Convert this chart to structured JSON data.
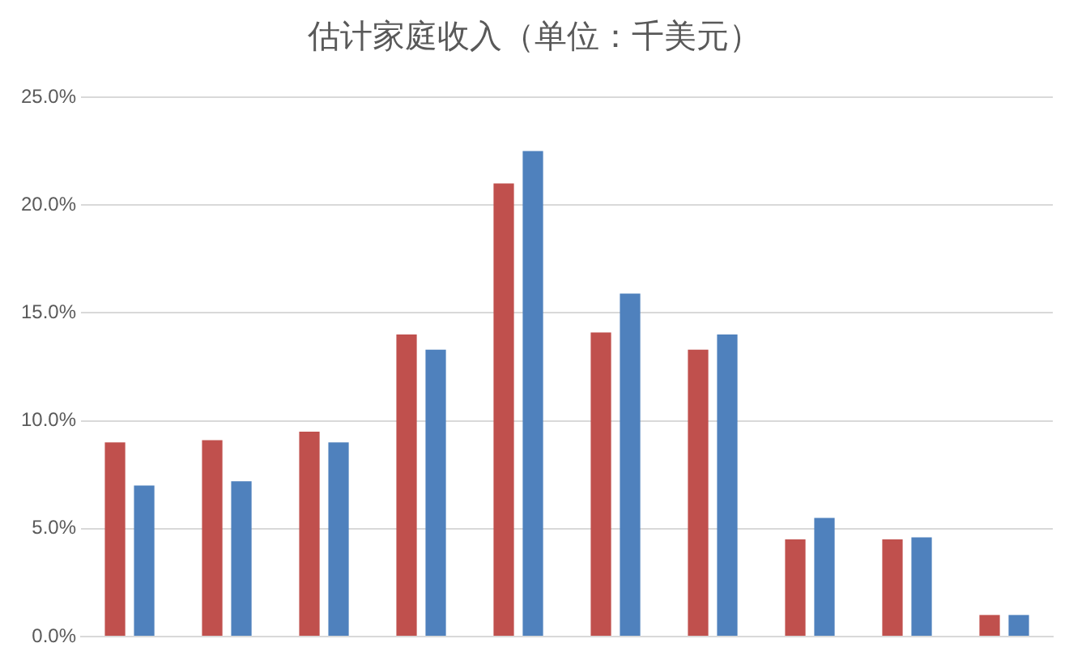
{
  "chart_data": {
    "type": "bar",
    "title": "估计家庭收入（单位：千美元）",
    "categories": [
      null,
      null,
      null,
      null,
      null,
      null,
      null,
      null,
      null,
      null
    ],
    "series": [
      {
        "color": "#c0504d",
        "values": [
          9.0,
          9.1,
          9.5,
          14.0,
          21.0,
          14.1,
          13.3,
          4.5,
          4.5,
          1.0
        ]
      },
      {
        "color": "#4f81bd",
        "values": [
          7.0,
          7.2,
          9.0,
          13.3,
          22.5,
          15.9,
          14.0,
          5.5,
          4.6,
          1.0
        ]
      }
    ],
    "ylim": [
      0,
      25
    ],
    "yticks": [
      {
        "value": 0,
        "label": "0.0%"
      },
      {
        "value": 5,
        "label": "5.0%"
      },
      {
        "value": 10,
        "label": "10.0%"
      },
      {
        "value": 15,
        "label": "15.0%"
      },
      {
        "value": 20,
        "label": "20.0%"
      },
      {
        "value": 25,
        "label": "25.0%"
      }
    ],
    "grid": "y",
    "tick_labels": "y"
  }
}
